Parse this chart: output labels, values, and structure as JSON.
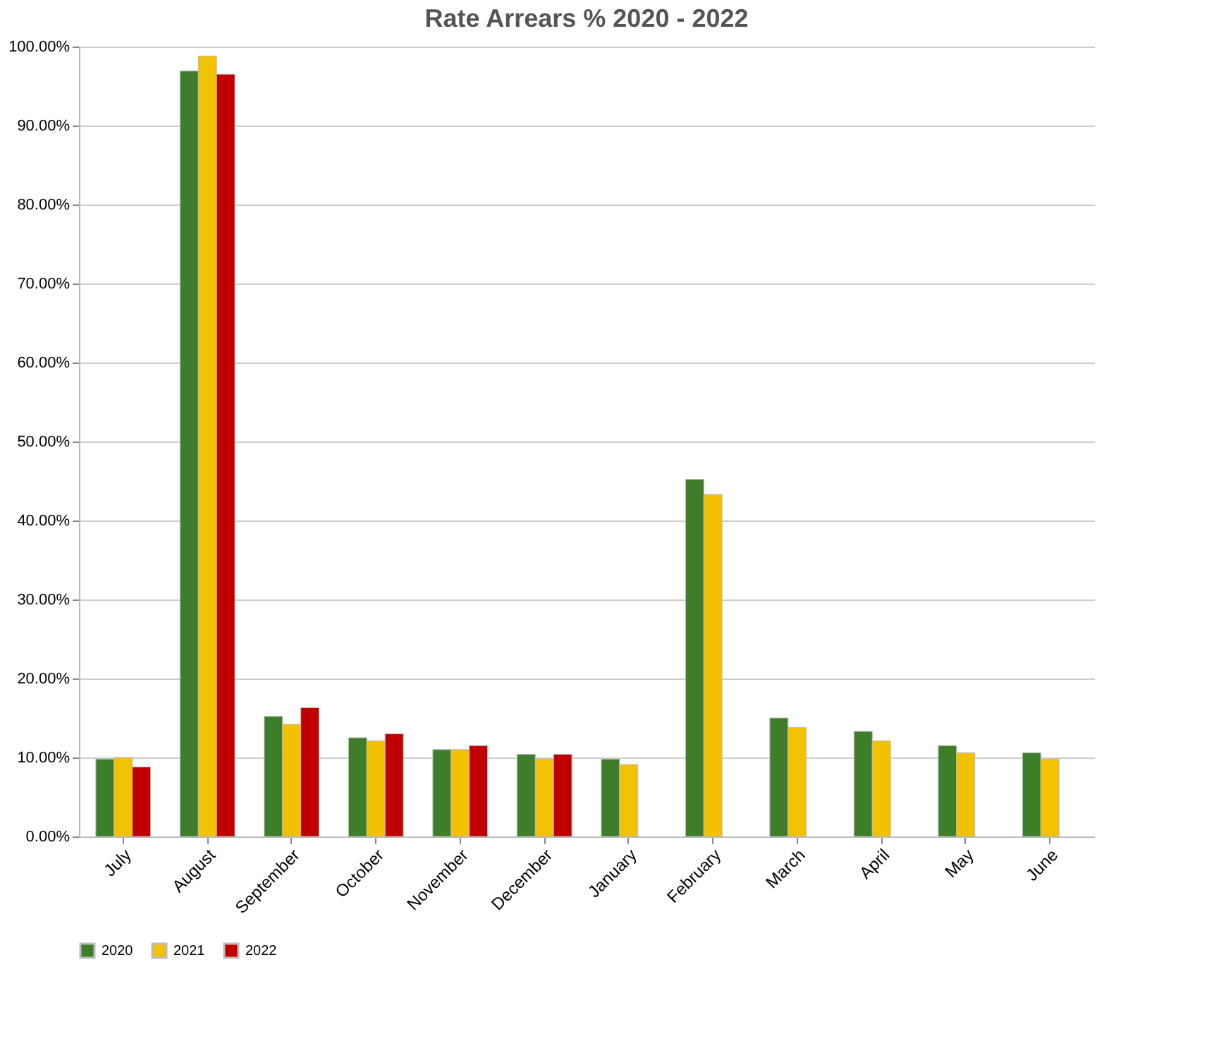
{
  "chart_data": {
    "type": "bar",
    "title": "Rate Arrears % 2020 - 2022",
    "categories": [
      "July",
      "August",
      "September",
      "October",
      "November",
      "December",
      "January",
      "February",
      "March",
      "April",
      "May",
      "June"
    ],
    "series": [
      {
        "name": "2020",
        "color": "#3e7d2a",
        "values": [
          9.8,
          96.9,
          15.2,
          12.5,
          11,
          10.4,
          9.8,
          45.2,
          15,
          13.3,
          11.5,
          10.6
        ]
      },
      {
        "name": "2021",
        "color": "#f2c200",
        "values": [
          10,
          98.8,
          14.2,
          12.1,
          11,
          9.8,
          9.1,
          43.3,
          13.8,
          12.1,
          10.6,
          9.8
        ]
      },
      {
        "name": "2022",
        "color": "#c00000",
        "values": [
          8.8,
          96.5,
          16.3,
          13,
          11.5,
          10.4,
          null,
          null,
          null,
          null,
          null,
          null
        ]
      }
    ],
    "ylim": [
      0,
      100
    ],
    "yticks": [
      {
        "value": 0,
        "label": "0.00%"
      },
      {
        "value": 10,
        "label": "10.00%"
      },
      {
        "value": 20,
        "label": "20.00%"
      },
      {
        "value": 30,
        "label": "30.00%"
      },
      {
        "value": 40,
        "label": "40.00%"
      },
      {
        "value": 50,
        "label": "50.00%"
      },
      {
        "value": 60,
        "label": "60.00%"
      },
      {
        "value": 70,
        "label": "70.00%"
      },
      {
        "value": 80,
        "label": "80.00%"
      },
      {
        "value": 90,
        "label": "90.00%"
      },
      {
        "value": 100,
        "label": "100.00%"
      }
    ],
    "grid": "y",
    "legend": "bottom"
  }
}
